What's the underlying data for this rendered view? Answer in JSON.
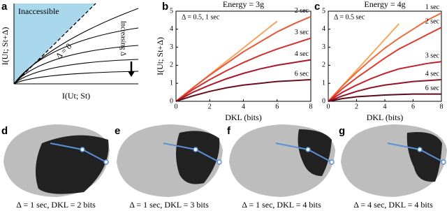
{
  "chart_data": [
    {
      "type": "diagram",
      "panel": "a",
      "region_label": "Inaccessible",
      "boundary_label": "Δ = 0",
      "arrow_label": "Increasing Δ",
      "x_label": "I(Ut; St)",
      "y_label": "I(Ut; St+Δ)"
    },
    {
      "type": "line",
      "panel": "b",
      "title": "Energy = 3g",
      "x_label": "DKL (bits)",
      "y_label": "I(Ut; St+Δ)",
      "x": [
        0,
        1,
        2,
        3,
        4,
        5,
        6,
        7,
        8
      ],
      "xlim": [
        0,
        8
      ],
      "ylim": [
        0,
        5
      ],
      "xticks": [
        0,
        2,
        4,
        6,
        8
      ],
      "yticks": [
        0,
        1,
        2,
        3,
        4,
        5
      ],
      "series": [
        {
          "name": "Δ = 0.5, 1 sec",
          "color": "#f5a45a",
          "values": [
            0,
            0.74,
            1.48,
            2.22,
            2.96,
            3.7,
            4.44,
            null,
            null
          ]
        },
        {
          "name": "2 sec",
          "color": "#e8573a",
          "values": [
            0,
            0.75,
            1.45,
            2.1,
            2.75,
            3.3,
            3.85,
            4.3,
            4.7
          ]
        },
        {
          "name": "3 sec",
          "color": "#d2302a",
          "values": [
            0,
            0.65,
            1.2,
            1.7,
            2.15,
            2.55,
            2.9,
            3.2,
            3.5
          ]
        },
        {
          "name": "4 sec",
          "color": "#a8172a",
          "values": [
            0,
            0.5,
            0.9,
            1.25,
            1.55,
            1.8,
            2.0,
            2.15,
            2.3
          ]
        },
        {
          "name": "6 sec",
          "color": "#6b0f1e",
          "values": [
            0,
            0.3,
            0.55,
            0.75,
            0.9,
            1.0,
            1.1,
            1.15,
            1.2
          ]
        }
      ]
    },
    {
      "type": "line",
      "panel": "c",
      "title": "Energy = 4g",
      "x_label": "DKL (bits)",
      "x": [
        0,
        1,
        2,
        3,
        4,
        5,
        6,
        7,
        8
      ],
      "xlim": [
        0,
        8
      ],
      "ylim": [
        0,
        5
      ],
      "xticks": [
        0,
        2,
        4,
        6,
        8
      ],
      "yticks": [
        0,
        1,
        2,
        3,
        4,
        5
      ],
      "series": [
        {
          "name": "Δ = 0.5 sec",
          "color": "#f5a85c",
          "values": [
            0,
            0.86,
            1.72,
            2.58,
            3.44,
            4.3,
            null,
            null,
            null
          ]
        },
        {
          "name": "1 sec",
          "color": "#ee6a3a",
          "values": [
            0,
            0.85,
            1.6,
            2.3,
            2.95,
            3.5,
            4.0,
            4.5,
            4.9
          ]
        },
        {
          "name": "2 sec",
          "color": "#e03a2e",
          "values": [
            0,
            0.7,
            1.3,
            1.85,
            2.4,
            2.9,
            3.3,
            3.7,
            4.1
          ]
        },
        {
          "name": "3 sec",
          "color": "#c21f2a",
          "values": [
            0,
            0.5,
            0.9,
            1.25,
            1.55,
            1.8,
            1.95,
            2.1,
            2.2
          ]
        },
        {
          "name": "4 sec",
          "color": "#8e1428",
          "values": [
            0,
            0.3,
            0.55,
            0.75,
            0.9,
            1.0,
            1.1,
            1.15,
            1.2
          ]
        },
        {
          "name": "6 sec",
          "color": "#5a0c18",
          "values": [
            0,
            0.15,
            0.25,
            0.3,
            0.35,
            0.38,
            0.4,
            0.4,
            0.4
          ]
        }
      ]
    }
  ],
  "images": [
    {
      "panel": "d",
      "caption": "Δ = 1 sec, DKL = 2 bits"
    },
    {
      "panel": "e",
      "caption": "Δ = 1 sec, DKL = 3 bits"
    },
    {
      "panel": "f",
      "caption": "Δ = 1 sec, DKL = 4 bits"
    },
    {
      "panel": "g",
      "caption": "Δ = 4 sec, DKL = 4 bits"
    }
  ]
}
